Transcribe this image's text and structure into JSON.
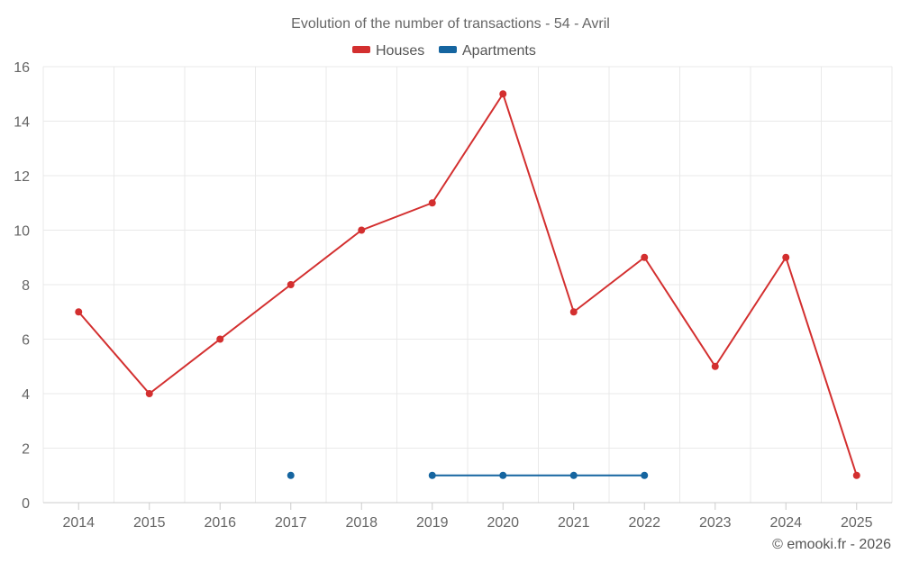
{
  "chart_data": {
    "type": "line",
    "title": "Evolution of the number of transactions - 54 - Avril",
    "categories": [
      "2014",
      "2015",
      "2016",
      "2017",
      "2018",
      "2019",
      "2020",
      "2021",
      "2022",
      "2023",
      "2024",
      "2025"
    ],
    "series": [
      {
        "name": "Houses",
        "color": "#d32f2f",
        "values": [
          7,
          4,
          6,
          8,
          10,
          11,
          15,
          7,
          9,
          5,
          9,
          1
        ]
      },
      {
        "name": "Apartments",
        "color": "#1565a0",
        "values": [
          null,
          null,
          null,
          1,
          null,
          1,
          1,
          1,
          1,
          null,
          null,
          null
        ]
      }
    ],
    "ylim": [
      0,
      16
    ],
    "yticks": [
      0,
      2,
      4,
      6,
      8,
      10,
      12,
      14,
      16
    ],
    "xlabel": "",
    "ylabel": "",
    "grid": true,
    "legend": "top-center"
  },
  "credit": "© emooki.fr - 2026"
}
